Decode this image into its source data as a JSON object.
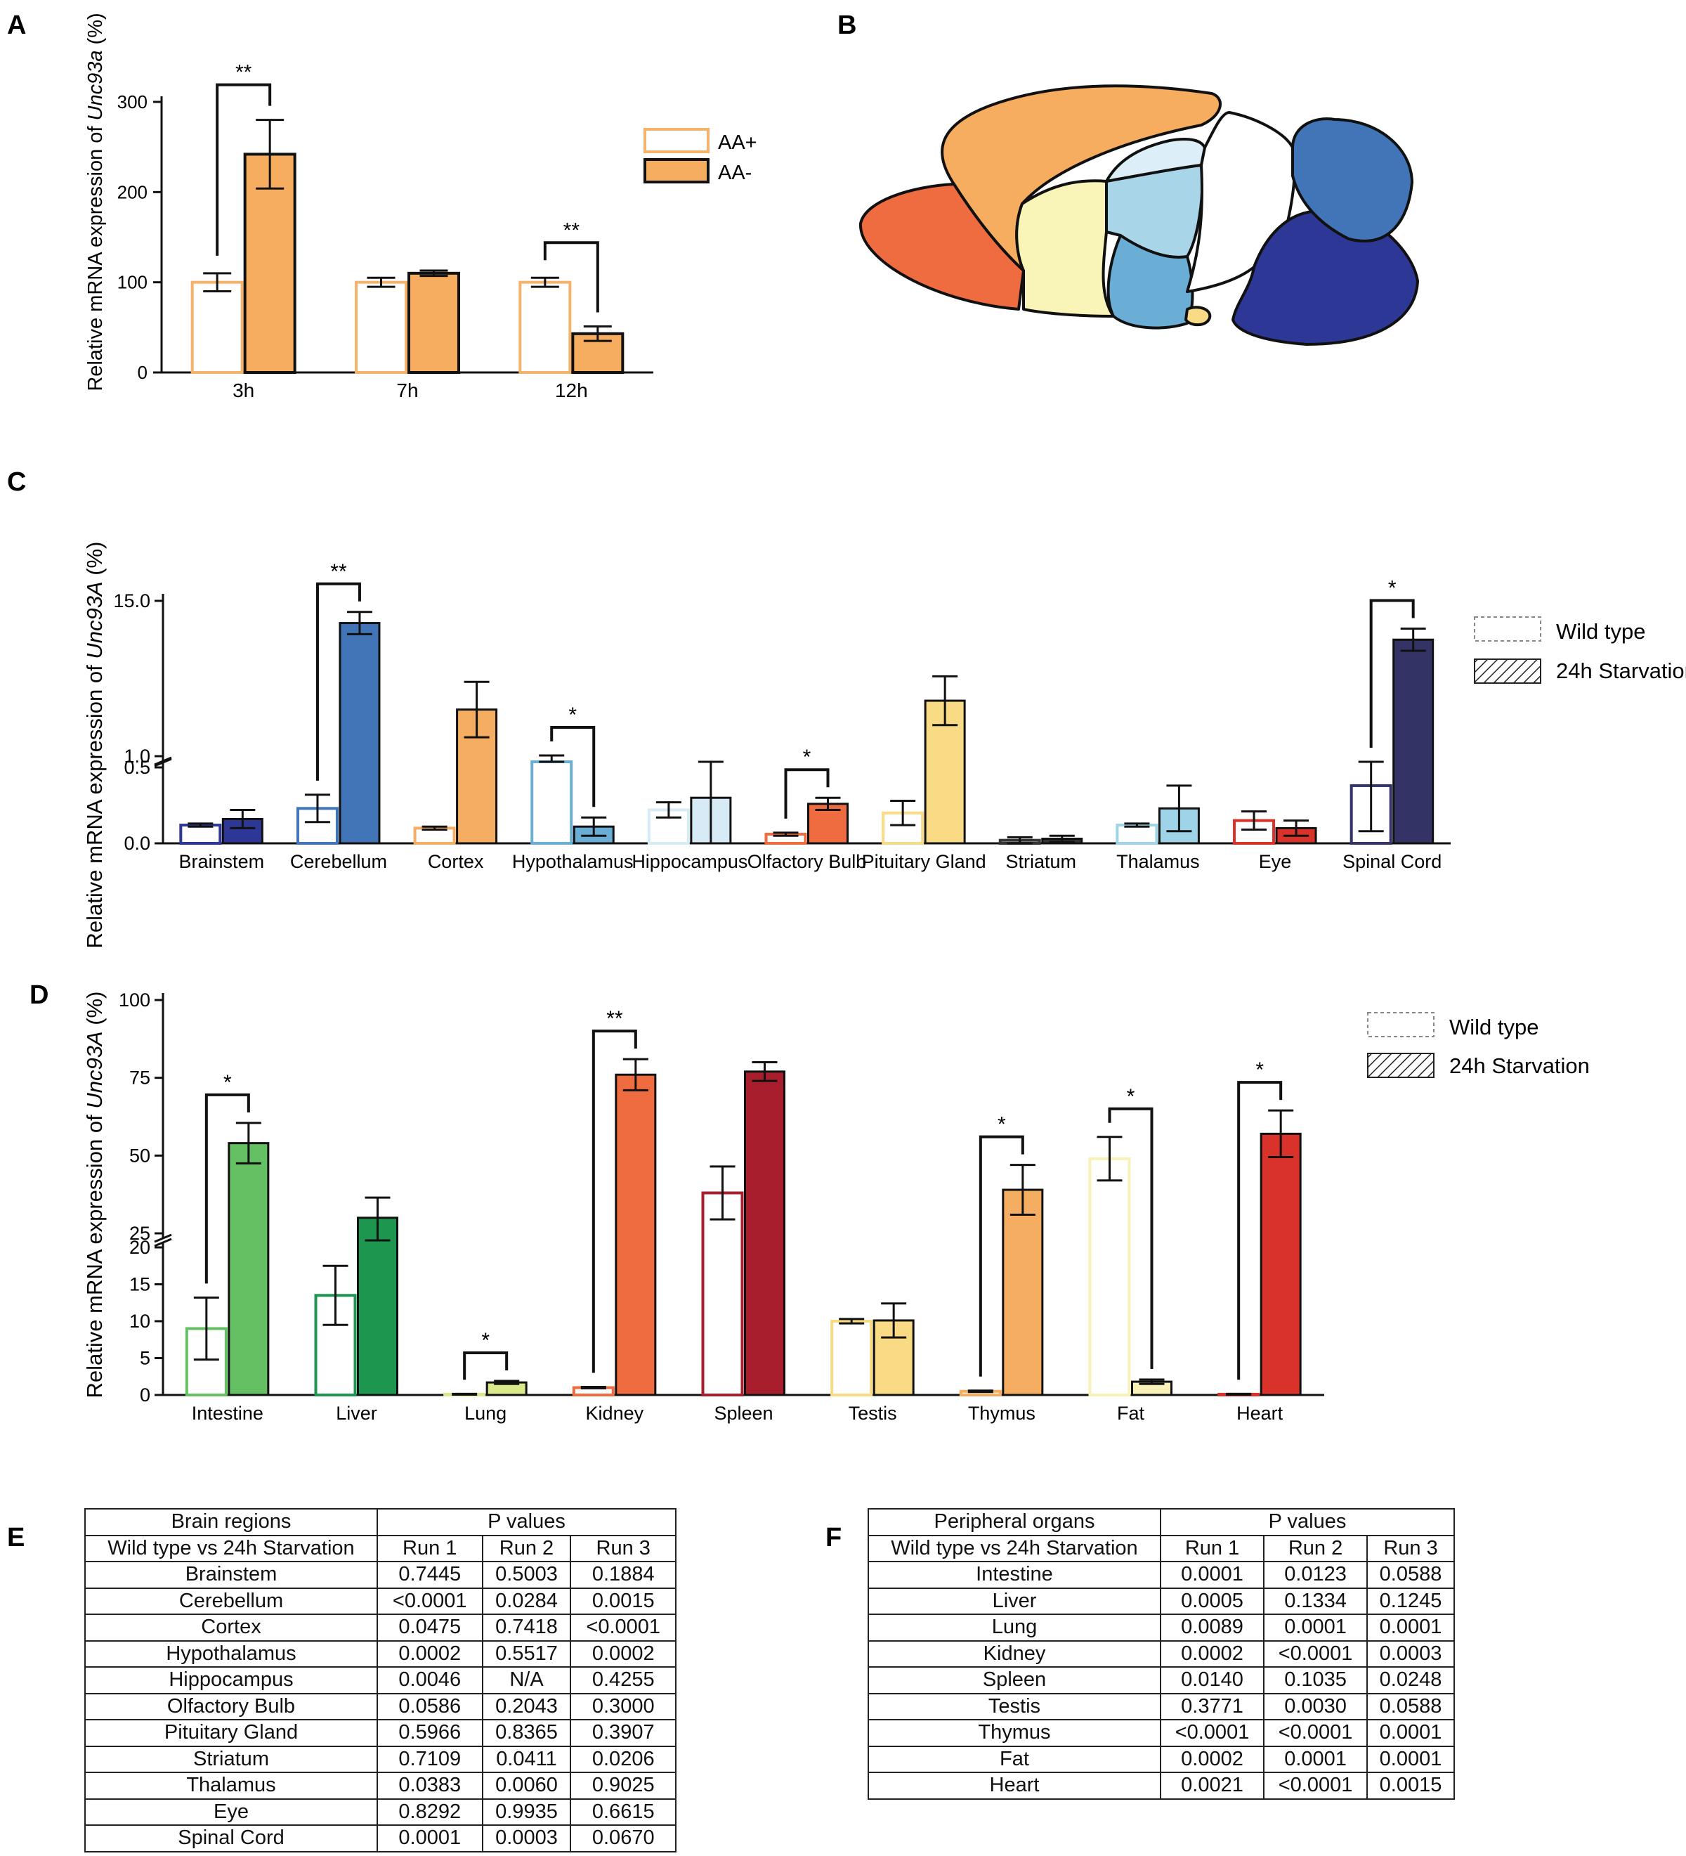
{
  "panel_labels": [
    "A",
    "B",
    "C",
    "D",
    "E",
    "F"
  ],
  "chart_data": [
    {
      "panel": "A",
      "type": "bar",
      "ylabel_prefix": "Relative mRNA expression of ",
      "ylabel_gene": "Unc93a",
      "ylabel_suffix": " (%)",
      "xlabel": "",
      "ylim": [
        0,
        300
      ],
      "yticks": [
        "0",
        "100",
        "200",
        "300"
      ],
      "categories": [
        "3h",
        "7h",
        "12h"
      ],
      "series": [
        {
          "name": "AA+",
          "values": [
            100,
            100,
            100
          ],
          "errors": [
            10,
            5,
            5
          ],
          "color": "#f4b36b",
          "filled": false
        },
        {
          "name": "AA-",
          "values": [
            242,
            110,
            43
          ],
          "errors": [
            38,
            3,
            8
          ],
          "color": "#f6ad5f",
          "filled": true
        }
      ],
      "significance": [
        {
          "category": "3h",
          "label": "**"
        },
        {
          "category": "12h",
          "label": "**"
        }
      ]
    },
    {
      "panel": "C",
      "type": "bar",
      "ylabel_prefix": "Relative mRNA expression of ",
      "ylabel_gene": "Unc93A",
      "ylabel_suffix": " (%)",
      "axis_break": true,
      "lower_ylim": [
        0,
        0.5
      ],
      "upper_ylim": [
        1.0,
        15.0
      ],
      "yticks": [
        "0.0",
        "0.5",
        "1.0",
        "15.0"
      ],
      "categories": [
        "Brainstem",
        "Cerebellum",
        "Cortex",
        "Hypothalamus",
        "Hippocampus",
        "Olfactory Bulb",
        "Pituitary Gland",
        "Striatum",
        "Thalamus",
        "Eye",
        "Spinal Cord"
      ],
      "colors": [
        "#2d3796",
        "#4175b8",
        "#f5ad61",
        "#6aaed6",
        "#d6ebf5",
        "#ef6c40",
        "#f9db86",
        "#333333",
        "#9fd3e8",
        "#d8322a",
        "#333366"
      ],
      "series": [
        {
          "name": "Wild type",
          "values": [
            0.12,
            0.23,
            0.1,
            0.98,
            0.22,
            0.06,
            0.2,
            0.02,
            0.12,
            0.15,
            0.38
          ],
          "errors": [
            0.01,
            0.09,
            0.01,
            0.08,
            0.05,
            0.01,
            0.08,
            0.02,
            0.01,
            0.06,
            0.3
          ]
        },
        {
          "name": "24h Starvation",
          "values": [
            0.16,
            13.0,
            5.2,
            0.11,
            0.3,
            0.26,
            6.0,
            0.03,
            0.23,
            0.1,
            11.5
          ],
          "errors": [
            0.06,
            1.0,
            2.5,
            0.06,
            0.3,
            0.04,
            2.2,
            0.02,
            0.15,
            0.05,
            1.0
          ]
        }
      ],
      "significance": [
        {
          "category": "Cerebellum",
          "label": "**"
        },
        {
          "category": "Hypothalamus",
          "label": "*"
        },
        {
          "category": "Olfactory Bulb",
          "label": "*"
        },
        {
          "category": "Spinal Cord",
          "label": "*"
        }
      ]
    },
    {
      "panel": "D",
      "type": "bar",
      "ylabel_prefix": "Relative mRNA expression of ",
      "ylabel_gene": "Unc93A",
      "ylabel_suffix": " (%)",
      "axis_break": true,
      "lower_ylim": [
        0,
        20
      ],
      "upper_ylim": [
        25,
        100
      ],
      "yticks": [
        "0",
        "5",
        "10",
        "15",
        "20",
        "25",
        "50",
        "75",
        "100"
      ],
      "categories": [
        "Intestine",
        "Liver",
        "Lung",
        "Kidney",
        "Spleen",
        "Testis",
        "Thymus",
        "Fat",
        "Heart"
      ],
      "colors": [
        "#65bf63",
        "#1d9650",
        "#d9e889",
        "#ef6c40",
        "#a81e2d",
        "#f9db86",
        "#f5ad61",
        "#f9f2b8",
        "#d8322a"
      ],
      "series": [
        {
          "name": "Wild type",
          "values": [
            9,
            13.5,
            0.1,
            1.0,
            38,
            10,
            0.5,
            49,
            0.1
          ],
          "errors": [
            4.2,
            4,
            0.05,
            0.1,
            8.5,
            0.3,
            0.1,
            7,
            0.05
          ]
        },
        {
          "name": "24h Starvation",
          "values": [
            54,
            30,
            1.7,
            76,
            77,
            10.1,
            39,
            1.8,
            57
          ],
          "errors": [
            6.5,
            6.5,
            0.2,
            5,
            3,
            2.3,
            8,
            0.3,
            7.5
          ]
        }
      ],
      "significance": [
        {
          "category": "Intestine",
          "label": "*"
        },
        {
          "category": "Lung",
          "label": "*"
        },
        {
          "category": "Kidney",
          "label": "**"
        },
        {
          "category": "Thymus",
          "label": "*"
        },
        {
          "category": "Fat",
          "label": "*"
        },
        {
          "category": "Heart",
          "label": "*"
        }
      ]
    }
  ],
  "legend_a": [
    "AA+",
    "AA-"
  ],
  "legend_cd": [
    "Wild type",
    "24h Starvation"
  ],
  "table_e": {
    "h1": "Brain regions",
    "h1b": "P values",
    "h2": "Wild type vs 24h Starvation",
    "runs": [
      "Run 1",
      "Run 2",
      "Run 3"
    ],
    "rows": [
      [
        "Brainstem",
        "0.7445",
        "0.5003",
        "0.1884"
      ],
      [
        "Cerebellum",
        "<0.0001",
        "0.0284",
        "0.0015"
      ],
      [
        "Cortex",
        "0.0475",
        "0.7418",
        "<0.0001"
      ],
      [
        "Hypothalamus",
        "0.0002",
        "0.5517",
        "0.0002"
      ],
      [
        "Hippocampus",
        "0.0046",
        "N/A",
        "0.4255"
      ],
      [
        "Olfactory Bulb",
        "0.0586",
        "0.2043",
        "0.3000"
      ],
      [
        "Pituitary Gland",
        "0.5966",
        "0.8365",
        "0.3907"
      ],
      [
        "Striatum",
        "0.7109",
        "0.0411",
        "0.0206"
      ],
      [
        "Thalamus",
        "0.0383",
        "0.0060",
        "0.9025"
      ],
      [
        "Eye",
        "0.8292",
        "0.9935",
        "0.6615"
      ],
      [
        "Spinal Cord",
        "0.0001",
        "0.0003",
        "0.0670"
      ]
    ]
  },
  "table_f": {
    "h1": "Peripheral organs",
    "h1b": "P values",
    "h2": "Wild type vs 24h Starvation",
    "runs": [
      "Run 1",
      "Run 2",
      "Run 3"
    ],
    "rows": [
      [
        "Intestine",
        "0.0001",
        "0.0123",
        "0.0588"
      ],
      [
        "Liver",
        "0.0005",
        "0.1334",
        "0.1245"
      ],
      [
        "Lung",
        "0.0089",
        "0.0001",
        "0.0001"
      ],
      [
        "Kidney",
        "0.0002",
        "<0.0001",
        "0.0003"
      ],
      [
        "Spleen",
        "0.0140",
        "0.1035",
        "0.0248"
      ],
      [
        "Testis",
        "0.3771",
        "0.0030",
        "0.0588"
      ],
      [
        "Thymus",
        "<0.0001",
        "<0.0001",
        "0.0001"
      ],
      [
        "Fat",
        "0.0002",
        "0.0001",
        "0.0001"
      ],
      [
        "Heart",
        "0.0021",
        "<0.0001",
        "0.0015"
      ]
    ]
  }
}
